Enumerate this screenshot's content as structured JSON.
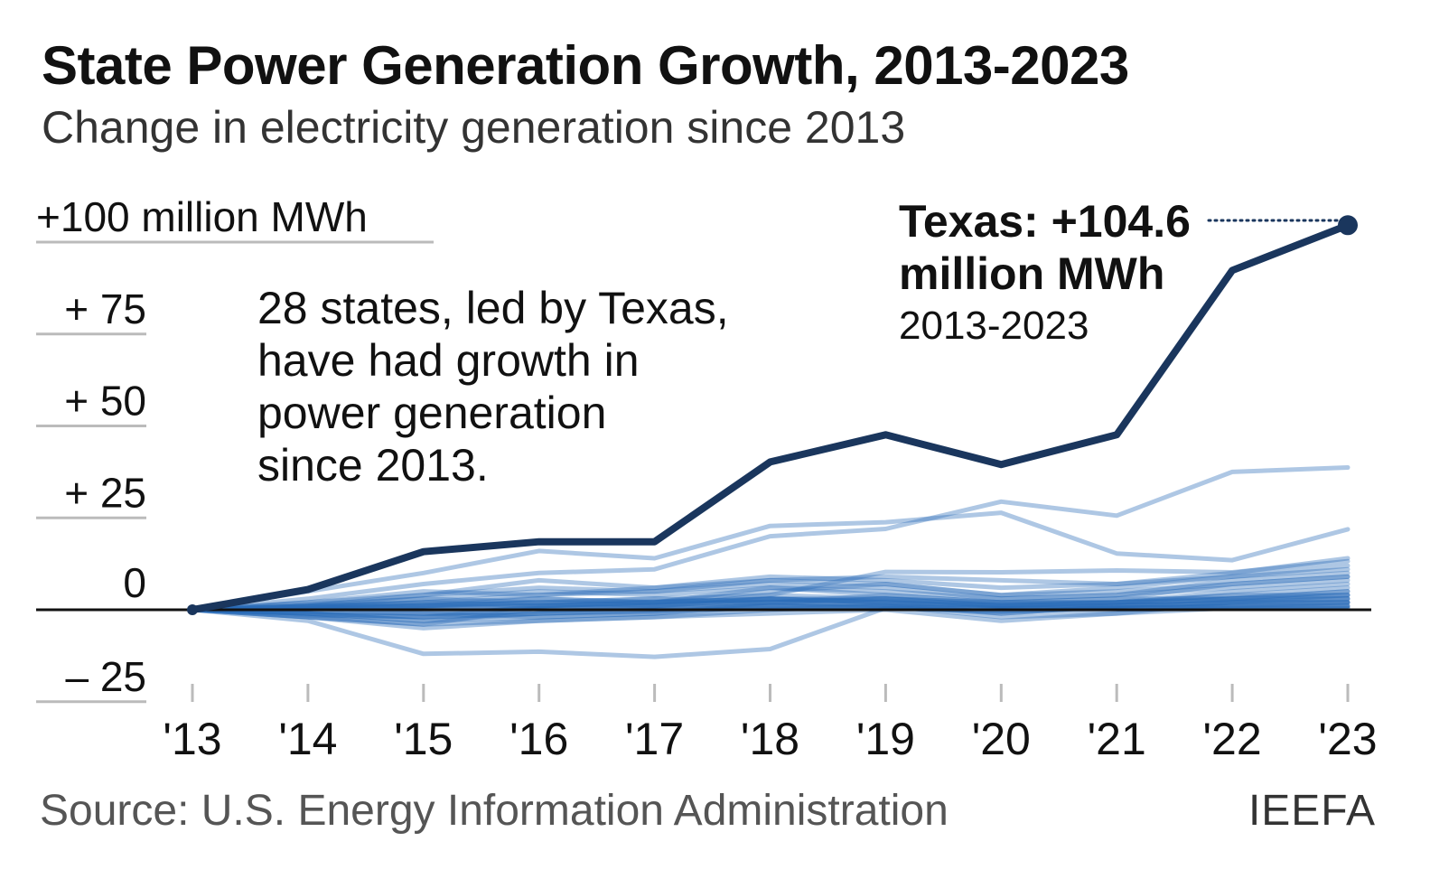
{
  "title": "State Power Generation Growth, 2013-2023",
  "subtitle": "Change in electricity generation since 2013",
  "source": "Source: U.S. Energy Information Administration",
  "brand": "IEEFA",
  "annotation": {
    "note_lines": [
      "28 states, led by Texas,",
      "have had growth in",
      "power generation",
      "since 2013."
    ],
    "texas_label_line1": "Texas: +104.6",
    "texas_label_line2": "million MWh",
    "texas_label_line3": "2013-2023"
  },
  "colors": {
    "highlight": "#1a365d",
    "others": "#2a6cb8",
    "zero_line": "#111111",
    "grid": "#bbbbbb"
  },
  "chart_data": {
    "type": "line",
    "x": [
      "'13",
      "'14",
      "'15",
      "'16",
      "'17",
      "'18",
      "'19",
      "'20",
      "'21",
      "'22",
      "'23"
    ],
    "ylim": [
      -25,
      100
    ],
    "y_ticks": [
      {
        "value": 100,
        "label": "+100 million MWh"
      },
      {
        "value": 75,
        "label": "+  75"
      },
      {
        "value": 50,
        "label": "+  50"
      },
      {
        "value": 25,
        "label": "+  25"
      },
      {
        "value": 0,
        "label": "0"
      },
      {
        "value": -25,
        "label": "–  25"
      }
    ],
    "highlight_series": {
      "name": "Texas",
      "values": [
        0,
        5.5,
        15.8,
        18.5,
        18.5,
        40.2,
        47.6,
        39.5,
        47.6,
        92.3,
        104.6
      ]
    },
    "series": [
      {
        "values": [
          0,
          3,
          7,
          10,
          11,
          20,
          22,
          29.4,
          25.6,
          37.5,
          38.7
        ]
      },
      {
        "values": [
          0,
          5,
          10,
          16,
          14,
          22.8,
          23.8,
          26.4,
          15.3,
          13.5,
          21.9
        ]
      },
      {
        "values": [
          0,
          -3,
          -12,
          -11.4,
          -12.8,
          -10.7,
          0.5,
          0.5,
          0.5,
          0.5,
          0.5
        ]
      },
      {
        "values": [
          0,
          -2,
          -4,
          0.5,
          1,
          4,
          10.3,
          10.2,
          10.7,
          10.2,
          13.2
        ]
      },
      {
        "values": [
          0,
          1,
          2,
          4,
          6,
          8,
          9,
          8,
          7,
          10,
          14
        ]
      },
      {
        "values": [
          0,
          2,
          4,
          6,
          5,
          7,
          6,
          3,
          4,
          8,
          10
        ]
      },
      {
        "values": [
          0,
          -1,
          -2,
          1,
          2,
          5,
          7,
          4,
          6,
          9,
          12
        ]
      },
      {
        "values": [
          0,
          0.5,
          1,
          3,
          2,
          6,
          4,
          2,
          3,
          7,
          9
        ]
      },
      {
        "values": [
          0,
          -1,
          -3,
          -2,
          -1,
          2,
          3,
          1,
          2,
          5,
          7
        ]
      },
      {
        "values": [
          0,
          0.5,
          -1,
          0.5,
          1,
          3,
          2,
          -1,
          1,
          3,
          5
        ]
      },
      {
        "values": [
          0,
          1,
          3,
          5,
          4,
          6,
          5,
          3,
          4,
          6,
          8
        ]
      },
      {
        "values": [
          0,
          -2,
          -4,
          -3,
          -2,
          0,
          1,
          -2,
          -1,
          2,
          4
        ]
      },
      {
        "values": [
          0,
          1.5,
          3,
          2,
          3,
          4,
          3,
          1,
          2,
          4,
          6
        ]
      },
      {
        "values": [
          0,
          -0.5,
          -1,
          -2,
          -1,
          1,
          2,
          0.5,
          1,
          2,
          3
        ]
      },
      {
        "values": [
          0,
          0.5,
          1,
          2,
          3,
          2,
          4,
          2,
          3,
          3,
          5
        ]
      },
      {
        "values": [
          0,
          -1,
          -2,
          -1,
          0,
          1,
          0.5,
          -0.5,
          0.5,
          1,
          2
        ]
      },
      {
        "values": [
          0,
          0.3,
          0.6,
          1,
          1.5,
          2,
          1.5,
          1,
          1.2,
          1.6,
          2
        ]
      },
      {
        "values": [
          0,
          1,
          4,
          8,
          6,
          9,
          8,
          6,
          7,
          9,
          11
        ]
      },
      {
        "values": [
          0,
          0.5,
          2,
          3,
          2,
          3,
          3,
          2,
          2,
          4,
          4
        ]
      },
      {
        "values": [
          0,
          -0.5,
          -1,
          -0.5,
          0.5,
          1,
          1,
          0.5,
          0.5,
          1,
          1
        ]
      },
      {
        "values": [
          0,
          1,
          1,
          2,
          1,
          3,
          2,
          1,
          2,
          3,
          3
        ]
      },
      {
        "values": [
          0,
          -1,
          -3,
          -1,
          0,
          2,
          1,
          -1,
          1,
          2,
          2
        ]
      },
      {
        "values": [
          0,
          2,
          5,
          4,
          5,
          8,
          7,
          4,
          5,
          7,
          9
        ]
      },
      {
        "values": [
          0,
          0.2,
          0.4,
          0.5,
          0.8,
          1,
          0.8,
          0.5,
          0.6,
          0.8,
          1
        ]
      },
      {
        "values": [
          0,
          -2,
          -5,
          -3,
          -2,
          -1,
          0,
          -3,
          -1,
          0.5,
          1
        ]
      },
      {
        "values": [
          0,
          1,
          2,
          1,
          2,
          2,
          3,
          2,
          2,
          3,
          4
        ]
      },
      {
        "values": [
          0,
          -1.5,
          -2,
          -1,
          -0.5,
          0.5,
          0.5,
          -0.5,
          0,
          0.5,
          0.5
        ]
      },
      {
        "values": [
          0,
          0.5,
          1,
          1,
          2,
          3,
          2,
          1,
          1,
          2,
          2
        ]
      },
      {
        "values": [
          0,
          0.8,
          1.5,
          1.8,
          2.2,
          2.8,
          2.5,
          1.5,
          2,
          2.5,
          3
        ]
      }
    ]
  }
}
